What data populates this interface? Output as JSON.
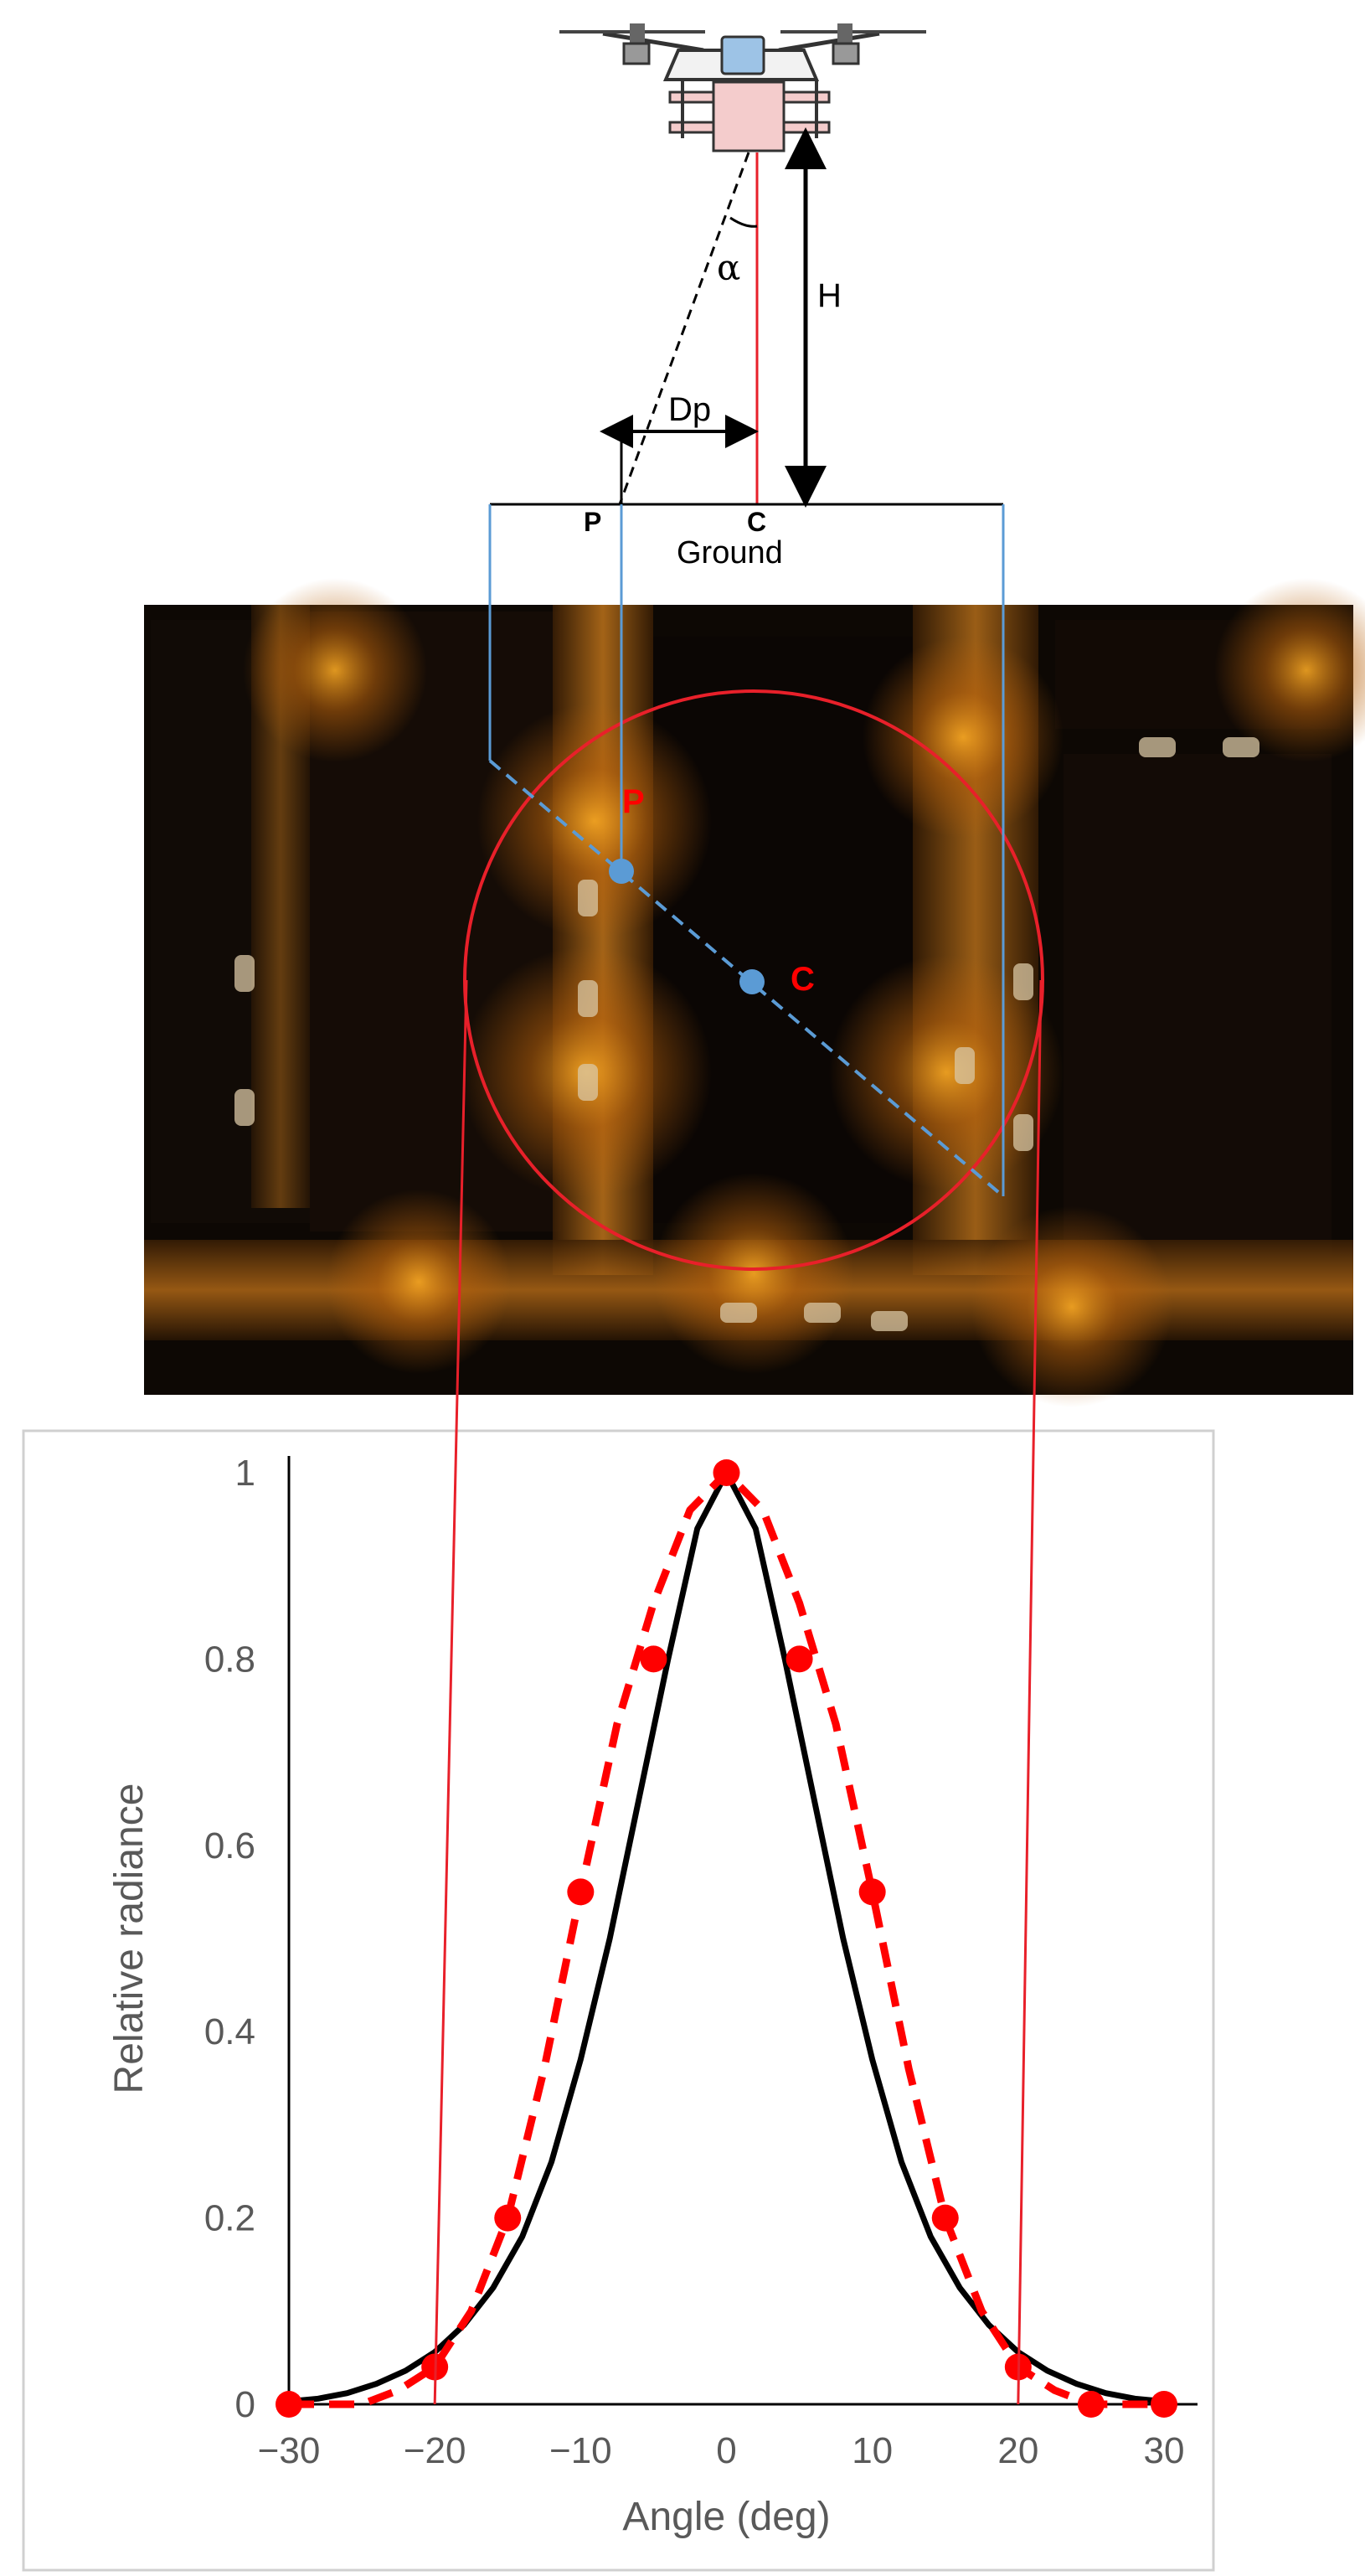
{
  "diagram": {
    "labels": {
      "alpha": "α",
      "height": "H",
      "distance": "Dp",
      "point_p": "P",
      "point_c": "C",
      "ground": "Ground",
      "photo_p": "P",
      "photo_c": "C"
    }
  },
  "colors": {
    "red_line": "#e8202a",
    "blue_line": "#5b9bd5",
    "marker_blue": "#5b9bd5",
    "fit_curve": "#000000",
    "measured": "#ff0000",
    "axis_text": "#595959"
  },
  "chart_data": {
    "type": "line",
    "xlabel": "Angle  (deg)",
    "ylabel": "Relative radiance",
    "xlim": [
      -30,
      30
    ],
    "ylim": [
      0,
      1
    ],
    "xticks": [
      "−30",
      "−20",
      "−10",
      "0",
      "10",
      "20",
      "30"
    ],
    "yticks": [
      "0",
      "0.2",
      "0.4",
      "0.6",
      "0.8",
      "1"
    ],
    "xtick_values": [
      -30,
      -20,
      -10,
      0,
      10,
      20,
      30
    ],
    "ytick_values": [
      0,
      0.2,
      0.4,
      0.6,
      0.8,
      1
    ],
    "grid": false,
    "series": [
      {
        "style": "solid-black",
        "x": [
          -30,
          -28,
          -26,
          -24,
          -22,
          -20,
          -18,
          -16,
          -14,
          -12,
          -10,
          -8,
          -6,
          -4,
          -2,
          0,
          2,
          4,
          6,
          8,
          10,
          12,
          14,
          16,
          18,
          20,
          22,
          24,
          26,
          28,
          30
        ],
        "y": [
          0.003,
          0.006,
          0.012,
          0.022,
          0.036,
          0.056,
          0.085,
          0.125,
          0.18,
          0.26,
          0.37,
          0.5,
          0.65,
          0.8,
          0.94,
          1.0,
          0.94,
          0.8,
          0.65,
          0.5,
          0.37,
          0.26,
          0.18,
          0.125,
          0.085,
          0.056,
          0.036,
          0.022,
          0.012,
          0.006,
          0.003
        ]
      },
      {
        "style": "dashed-red",
        "x": [
          -30,
          -27.5,
          -25,
          -22.5,
          -20,
          -17.5,
          -15,
          -12.5,
          -10,
          -7.5,
          -5,
          -2.5,
          0,
          2.5,
          5,
          7.5,
          10,
          12.5,
          15,
          17.5,
          20,
          22.5,
          25,
          27.5,
          30
        ],
        "y": [
          0.0,
          0.0,
          0.0,
          0.015,
          0.04,
          0.1,
          0.2,
          0.36,
          0.55,
          0.73,
          0.86,
          0.96,
          1.0,
          0.96,
          0.86,
          0.73,
          0.55,
          0.36,
          0.2,
          0.1,
          0.04,
          0.015,
          0.0,
          0.0,
          0.0
        ]
      },
      {
        "style": "red-markers",
        "x": [
          -30,
          -20,
          -15,
          -10,
          -5,
          0,
          5,
          10,
          15,
          20,
          25,
          30
        ],
        "y": [
          0,
          0.04,
          0.2,
          0.55,
          0.8,
          1.0,
          0.8,
          0.55,
          0.2,
          0.04,
          0,
          0
        ]
      }
    ]
  }
}
